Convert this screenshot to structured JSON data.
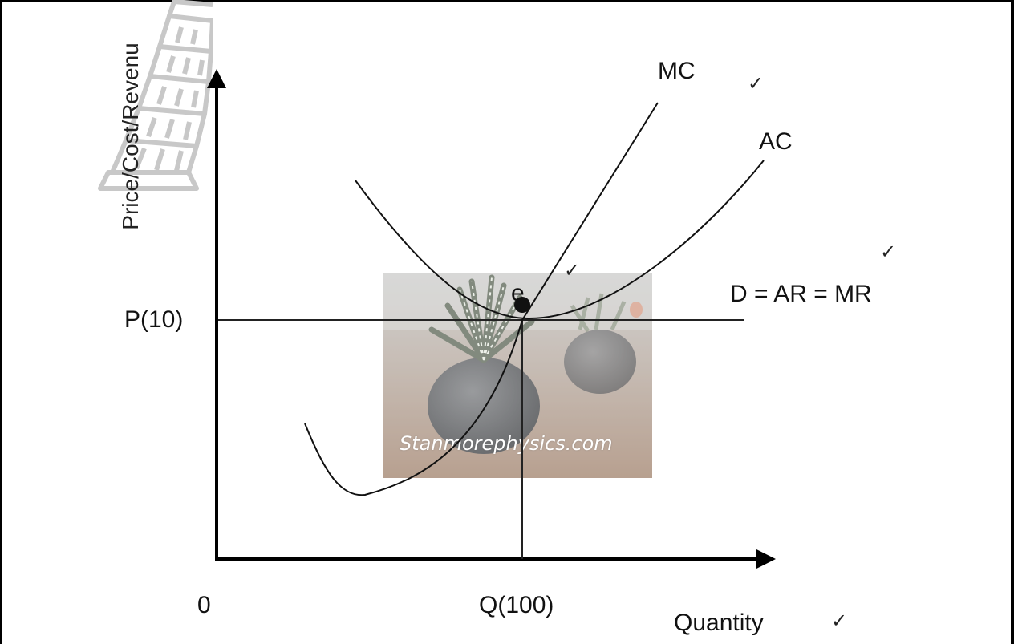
{
  "diagram": {
    "y_axis_label": "Price/Cost/Revenu",
    "x_axis_label": "Quantity",
    "origin_label": "0",
    "price_label": "P(10)",
    "quantity_label": "Q(100)",
    "curves": {
      "mc_label": "MC",
      "ac_label": "AC",
      "demand_label": "D = AR = MR"
    },
    "equilibrium_label": "e",
    "tick_mark": "✓",
    "watermark_text": "Stanmorephysics.com"
  },
  "colors": {
    "frame": "#000000",
    "lines": "#000000",
    "watermark_outline": "#c8c8c8"
  },
  "icons": [
    "leaning-tower-icon",
    "plant-photo-watermark",
    "check-icon"
  ]
}
